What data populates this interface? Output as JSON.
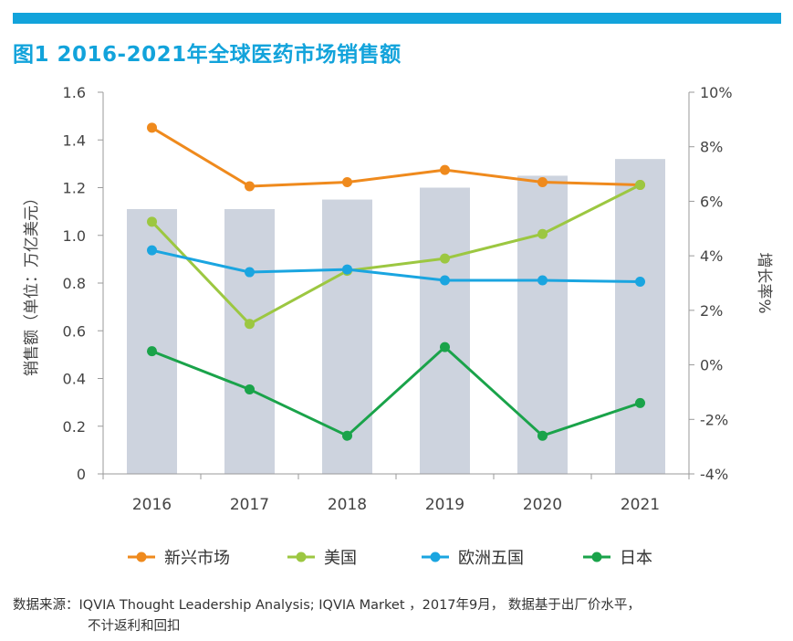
{
  "title": "图1 2016-2021年全球医药市场销售额",
  "source": {
    "line1": "数据来源：IQVIA Thought Leadership Analysis; IQVIA Market ，2017年9月， 数据基于出厂价水平，",
    "line2": "不计返利和回扣"
  },
  "colors": {
    "accent": "#12a3db",
    "bars": "#cdd3de",
    "axis": "#9a9a9a",
    "text": "#444444"
  },
  "chart_data": {
    "type": "bar+line",
    "categories": [
      "2016",
      "2017",
      "2018",
      "2019",
      "2020",
      "2021"
    ],
    "bar_series": {
      "values": [
        1.11,
        1.11,
        1.15,
        1.2,
        1.25,
        1.32
      ],
      "axis": "left"
    },
    "left_axis": {
      "label": "销售额（单位：万亿美元）",
      "ylim": [
        0,
        1.6
      ],
      "ticks": [
        "0",
        "0.2",
        "0.4",
        "0.6",
        "0.8",
        "1.0",
        "1.2",
        "1.4",
        "1.6"
      ]
    },
    "right_axis": {
      "label": "增长率%",
      "ylim": [
        -4,
        10
      ],
      "ticks": [
        "-4%",
        "-2%",
        "0%",
        "2%",
        "4%",
        "6%",
        "8%",
        "10%"
      ]
    },
    "line_series": [
      {
        "name": "新兴市场",
        "color": "#ef8a1d",
        "values": [
          8.7,
          6.55,
          6.7,
          7.15,
          6.7,
          6.6
        ]
      },
      {
        "name": "美国",
        "color": "#9cc741",
        "values": [
          5.25,
          1.5,
          3.45,
          3.9,
          4.8,
          6.6
        ]
      },
      {
        "name": "欧洲五国",
        "color": "#1aa5e0",
        "values": [
          4.2,
          3.4,
          3.5,
          3.1,
          3.1,
          3.05
        ]
      },
      {
        "name": "日本",
        "color": "#1aa34a",
        "values": [
          0.5,
          -0.9,
          -2.6,
          0.65,
          -2.6,
          -1.4
        ]
      }
    ],
    "legend_placement": "bottom",
    "grid": false
  }
}
